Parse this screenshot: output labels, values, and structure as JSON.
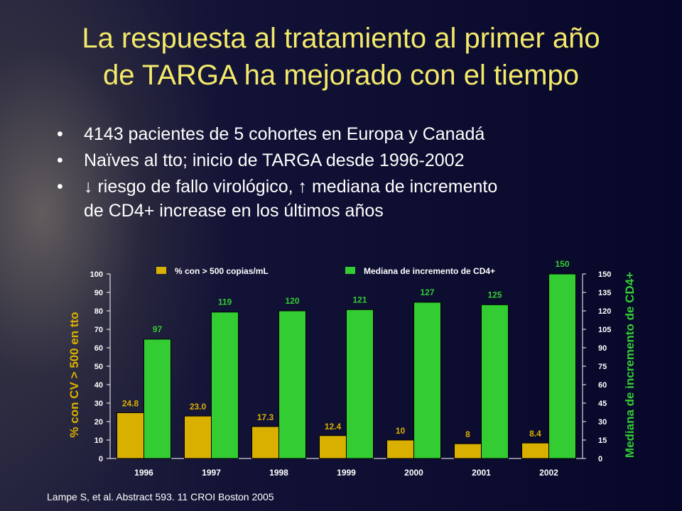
{
  "slide": {
    "title_line1": "La respuesta al tratamiento al primer año",
    "title_line2": "de TARGA ha mejorado con el tiempo",
    "bullets": [
      {
        "lines": [
          "4143 pacientes de 5 cohortes en Europa y Canadá"
        ]
      },
      {
        "lines": [
          "Naïves al tto; inicio de TARGA desde 1996-2002"
        ]
      },
      {
        "lines": [
          "↓ riesgo de fallo virológico, ↑ mediana de incremento",
          "de  CD4+ increase en los últimos años"
        ]
      }
    ],
    "bullet_symbol": "•",
    "citation": "Lampe S, et al. Abstract 593. 11 CROI Boston 2005",
    "colors": {
      "title": "#f3e96a",
      "text": "#ffffff",
      "background": "#0a0a2e"
    }
  },
  "chart_data": {
    "type": "bar",
    "categories": [
      "1996",
      "1997",
      "1998",
      "1999",
      "2000",
      "2001",
      "2002"
    ],
    "series": [
      {
        "name": "% con > 500 copias/mL",
        "axis": "left",
        "color": "#d9b000",
        "values": [
          24.8,
          23.0,
          17.3,
          12.4,
          10,
          8,
          8.4
        ],
        "labels": [
          "24.8",
          "23.0",
          "17.3",
          "12.4",
          "10",
          "8",
          "8.4"
        ]
      },
      {
        "name": "Mediana de incremento de CD4+",
        "axis": "right",
        "color": "#33cc33",
        "values": [
          97,
          119,
          120,
          121,
          127,
          125,
          150
        ],
        "labels": [
          "97",
          "119",
          "120",
          "121",
          "127",
          "125",
          "150"
        ]
      }
    ],
    "ylabel": "% con CV > 500 en tto",
    "y2label": "Mediana de incremento de CD4+",
    "ylim": [
      0,
      100
    ],
    "y2lim": [
      0,
      150
    ],
    "yticks": [
      "0",
      "10",
      "20",
      "30",
      "40",
      "50",
      "60",
      "70",
      "80",
      "90",
      "100"
    ],
    "y2ticks": [
      "0",
      "15",
      "30",
      "45",
      "60",
      "75",
      "90",
      "105",
      "120",
      "135",
      "150"
    ],
    "legend_position": "top",
    "grid": false,
    "colors": {
      "left_axis_label": "#d9b000",
      "right_axis_label": "#33cc33",
      "axis_text": "#ffffff"
    }
  }
}
